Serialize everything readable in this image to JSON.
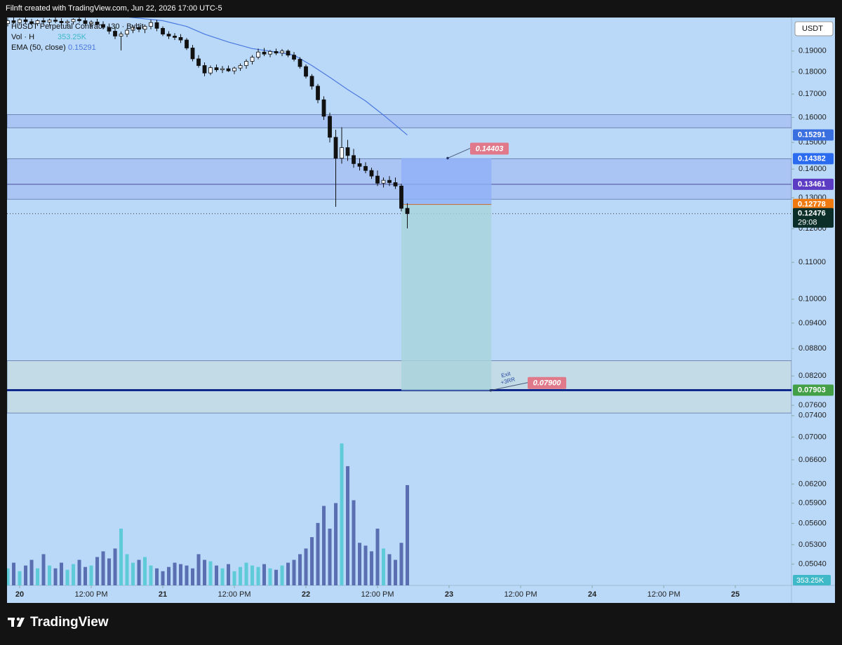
{
  "header": {
    "text": "Filnft created with TradingView.com, Jun 22, 2026 17:00 UTC-5"
  },
  "footer": {
    "brand": "TradingView"
  },
  "chart_data": {
    "type": "candlestick",
    "title": "HUSDT Perpetual Contract · 30 · Bybit",
    "currency": "USDT",
    "log_scale": true,
    "up_color": "#ffffff",
    "down_color": "#111111",
    "wick_color": "#111111",
    "x": [
      -2,
      -1,
      0,
      1,
      2,
      3,
      4,
      5,
      6,
      7,
      8,
      9,
      10,
      11,
      12,
      13,
      14,
      15,
      16,
      17,
      18,
      19,
      20,
      21,
      22,
      23,
      24,
      25,
      26,
      27,
      28,
      29,
      30,
      31,
      32,
      33,
      34,
      35,
      36,
      37,
      38,
      39,
      40,
      41,
      42,
      43,
      44,
      45,
      46,
      47,
      48,
      49,
      50,
      51,
      52,
      53,
      54,
      55,
      56,
      57,
      58,
      59,
      60,
      61,
      62,
      63,
      64,
      65
    ],
    "open": [
      0.204,
      0.2055,
      0.2045,
      0.206,
      0.205,
      0.204,
      0.2055,
      0.2048,
      0.2058,
      0.2052,
      0.2044,
      0.205,
      0.2062,
      0.2055,
      0.204,
      0.2048,
      0.2035,
      0.202,
      0.2,
      0.1975,
      0.1985,
      0.2005,
      0.202,
      0.201,
      0.2025,
      0.2045,
      0.2015,
      0.1985,
      0.1975,
      0.1968,
      0.1955,
      0.1915,
      0.1862,
      0.183,
      0.1795,
      0.182,
      0.181,
      0.1815,
      0.1805,
      0.1818,
      0.183,
      0.185,
      0.187,
      0.1895,
      0.1885,
      0.1898,
      0.189,
      0.19,
      0.188,
      0.186,
      0.1825,
      0.178,
      0.1735,
      0.1675,
      0.1605,
      0.152,
      0.144,
      0.148,
      0.145,
      0.142,
      0.141,
      0.1395,
      0.1375,
      0.135,
      0.136,
      0.1352,
      0.134,
      0.1265
    ],
    "high": [
      0.207,
      0.2072,
      0.2068,
      0.2075,
      0.2065,
      0.2062,
      0.207,
      0.2066,
      0.2074,
      0.2068,
      0.206,
      0.2068,
      0.2078,
      0.207,
      0.2058,
      0.2065,
      0.2052,
      0.204,
      0.202,
      0.1998,
      0.2015,
      0.203,
      0.204,
      0.2035,
      0.206,
      0.206,
      0.2025,
      0.2,
      0.199,
      0.1985,
      0.1965,
      0.193,
      0.188,
      0.1845,
      0.183,
      0.1835,
      0.1828,
      0.183,
      0.1825,
      0.184,
      0.186,
      0.188,
      0.1912,
      0.1915,
      0.1905,
      0.1912,
      0.191,
      0.1908,
      0.1895,
      0.187,
      0.1835,
      0.179,
      0.1745,
      0.169,
      0.162,
      0.155,
      0.156,
      0.151,
      0.1475,
      0.144,
      0.1425,
      0.1405,
      0.1395,
      0.137,
      0.1375,
      0.137,
      0.1348,
      0.1282
    ],
    "low": [
      0.2025,
      0.2035,
      0.203,
      0.204,
      0.2032,
      0.2028,
      0.2038,
      0.203,
      0.2042,
      0.2036,
      0.2025,
      0.2035,
      0.2045,
      0.203,
      0.202,
      0.203,
      0.201,
      0.1985,
      0.196,
      0.1903,
      0.197,
      0.199,
      0.1995,
      0.199,
      0.201,
      0.2,
      0.1975,
      0.196,
      0.1955,
      0.194,
      0.1905,
      0.185,
      0.182,
      0.178,
      0.1785,
      0.18,
      0.1795,
      0.18,
      0.179,
      0.1805,
      0.1815,
      0.1835,
      0.186,
      0.1875,
      0.187,
      0.188,
      0.1875,
      0.187,
      0.185,
      0.1815,
      0.177,
      0.172,
      0.166,
      0.159,
      0.15,
      0.127,
      0.142,
      0.143,
      0.1405,
      0.1395,
      0.1385,
      0.1365,
      0.134,
      0.1335,
      0.134,
      0.133,
      0.1255,
      0.1201
    ],
    "close": [
      0.2055,
      0.2045,
      0.206,
      0.205,
      0.204,
      0.2055,
      0.2048,
      0.2058,
      0.2052,
      0.2044,
      0.205,
      0.2062,
      0.2055,
      0.204,
      0.2048,
      0.2035,
      0.202,
      0.2,
      0.1975,
      0.1985,
      0.2005,
      0.202,
      0.201,
      0.2025,
      0.2045,
      0.2015,
      0.1985,
      0.1975,
      0.1968,
      0.1955,
      0.1915,
      0.1862,
      0.183,
      0.1795,
      0.182,
      0.181,
      0.1815,
      0.1805,
      0.1818,
      0.183,
      0.185,
      0.187,
      0.1895,
      0.1885,
      0.1898,
      0.189,
      0.19,
      0.188,
      0.186,
      0.1825,
      0.178,
      0.1735,
      0.1675,
      0.1605,
      0.152,
      0.144,
      0.148,
      0.145,
      0.142,
      0.141,
      0.1395,
      0.1375,
      0.135,
      0.136,
      0.1352,
      0.134,
      0.1265,
      0.12476
    ],
    "volume": {
      "name": "Vol · H",
      "last_label": "353.25K",
      "up_color": "#5fcbd8",
      "down_color": "#5a6eb2",
      "color": "#3fb8c8",
      "values": [
        60000,
        80000,
        50000,
        70000,
        90000,
        60000,
        110000,
        70000,
        60000,
        80000,
        55000,
        75000,
        90000,
        65000,
        70000,
        100000,
        120000,
        95000,
        130000,
        200000,
        110000,
        80000,
        90000,
        100000,
        70000,
        60000,
        50000,
        65000,
        80000,
        75000,
        70000,
        60000,
        110000,
        90000,
        85000,
        70000,
        60000,
        75000,
        50000,
        65000,
        80000,
        70000,
        65000,
        75000,
        60000,
        55000,
        70000,
        80000,
        90000,
        110000,
        130000,
        170000,
        220000,
        280000,
        200000,
        290000,
        500000,
        420000,
        300000,
        150000,
        140000,
        120000,
        200000,
        130000,
        110000,
        90000,
        150000,
        353250
      ]
    },
    "ema": {
      "name": "EMA (50, close)",
      "color": "#4a78e0",
      "x": [
        18,
        24,
        28,
        31,
        35,
        39,
        43,
        46,
        49,
        52,
        55,
        58,
        61,
        65
      ],
      "values": [
        0.2075,
        0.2055,
        0.2025,
        0.1985,
        0.1945,
        0.1912,
        0.1895,
        0.188,
        0.183,
        0.1775,
        0.172,
        0.167,
        0.161,
        0.15291
      ]
    },
    "xlim": [
      -2.12,
      129.41
    ],
    "xticks": [
      {
        "value": 0,
        "label": "20"
      },
      {
        "value": 12,
        "label": "12:00 PM"
      },
      {
        "value": 24,
        "label": "21"
      },
      {
        "value": 36,
        "label": "12:00 PM"
      },
      {
        "value": 48,
        "label": "22"
      },
      {
        "value": 60,
        "label": "12:00 PM"
      },
      {
        "value": 72,
        "label": "23"
      },
      {
        "value": 84,
        "label": "12:00 PM"
      },
      {
        "value": 96,
        "label": "24"
      },
      {
        "value": 108,
        "label": "12:00 PM"
      },
      {
        "value": 120,
        "label": "25"
      }
    ],
    "ylim": [
      0.0477,
      0.2072
    ],
    "yticks": [
      {
        "value": 0.19,
        "label": "0.19000"
      },
      {
        "value": 0.18,
        "label": "0.18000"
      },
      {
        "value": 0.17,
        "label": "0.17000"
      },
      {
        "value": 0.16,
        "label": "0.16000"
      },
      {
        "value": 0.15,
        "label": "0.15000"
      },
      {
        "value": 0.14,
        "label": "0.14000"
      },
      {
        "value": 0.13,
        "label": "0.13000"
      },
      {
        "value": 0.12,
        "label": "0.12000"
      },
      {
        "value": 0.11,
        "label": "0.11000"
      },
      {
        "value": 0.1,
        "label": "0.10000"
      },
      {
        "value": 0.094,
        "label": "0.09400"
      },
      {
        "value": 0.088,
        "label": "0.08800"
      },
      {
        "value": 0.082,
        "label": "0.08200"
      },
      {
        "value": 0.076,
        "label": "0.07600"
      },
      {
        "value": 0.074,
        "label": "0.07400"
      },
      {
        "value": 0.07,
        "label": "0.07000"
      },
      {
        "value": 0.066,
        "label": "0.06600"
      },
      {
        "value": 0.062,
        "label": "0.06200"
      },
      {
        "value": 0.059,
        "label": "0.05900"
      },
      {
        "value": 0.056,
        "label": "0.05600"
      },
      {
        "value": 0.053,
        "label": "0.05300"
      },
      {
        "value": 0.0504,
        "label": "0.05040"
      }
    ],
    "y2lim": [
      0,
      2000000
    ],
    "zones": [
      {
        "top": 0.1612,
        "bottom": 0.1558,
        "color": "#a7bff2"
      },
      {
        "top": 0.14382,
        "bottom": 0.1295,
        "color": "#a7bff2"
      },
      {
        "top": 0.0853,
        "bottom": 0.0745,
        "color": "#c4dae4"
      }
    ],
    "levels": [
      {
        "value": 0.13461,
        "color": "#4b4f98",
        "width": 1
      },
      {
        "value": 0.07903,
        "color": "#0f2a8c",
        "width": 3
      }
    ],
    "badges": [
      {
        "value": 0.15291,
        "color": "#3a6fe0"
      },
      {
        "value": 0.14382,
        "color": "#2a6bf0"
      },
      {
        "value": 0.13461,
        "color": "#5d3cc4"
      },
      {
        "value": 0.12778,
        "color": "#f07a10"
      },
      {
        "value": 0.07903,
        "color": "#43a047"
      }
    ],
    "last_price": {
      "value": 0.12476,
      "countdown": "29:08",
      "color": "#0b2f28"
    },
    "position": {
      "x_start": 64,
      "x_end": 79.1,
      "entry": 0.12778,
      "stop": 0.14403,
      "target": {
        "value": 0.079,
        "label": "0.07900"
      },
      "note": [
        "Exit",
        "+3RR"
      ],
      "stop_color": "#8fb0f7",
      "target_color": "#a9d3dc",
      "label_color": "#e07a8a"
    }
  }
}
